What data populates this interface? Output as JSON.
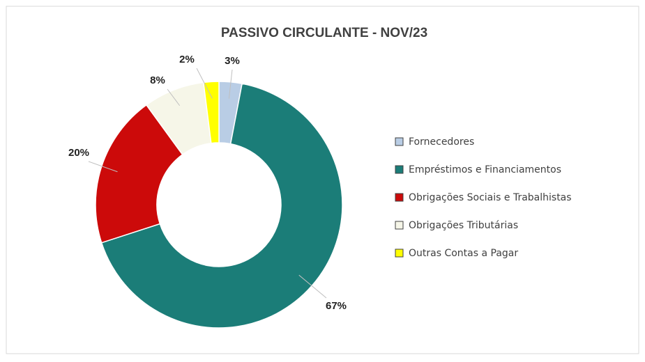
{
  "chart_data": {
    "type": "donut",
    "title": "PASSIVO  CIRCULANTE - NOV/23",
    "categories": [
      "Fornecedores",
      "Empréstimos e Financiamentos",
      "Obrigações Sociais e Trabalhistas",
      "Obrigações Tributárias",
      "Outras Contas a Pagar"
    ],
    "values": [
      3,
      67,
      20,
      8,
      2
    ],
    "value_labels": [
      "3%",
      "67%",
      "20%",
      "8%",
      "2%"
    ],
    "colors": [
      "#b9cde5",
      "#1b7d78",
      "#cc0a0a",
      "#f6f6e8",
      "#ffff00"
    ],
    "legend": "right"
  }
}
